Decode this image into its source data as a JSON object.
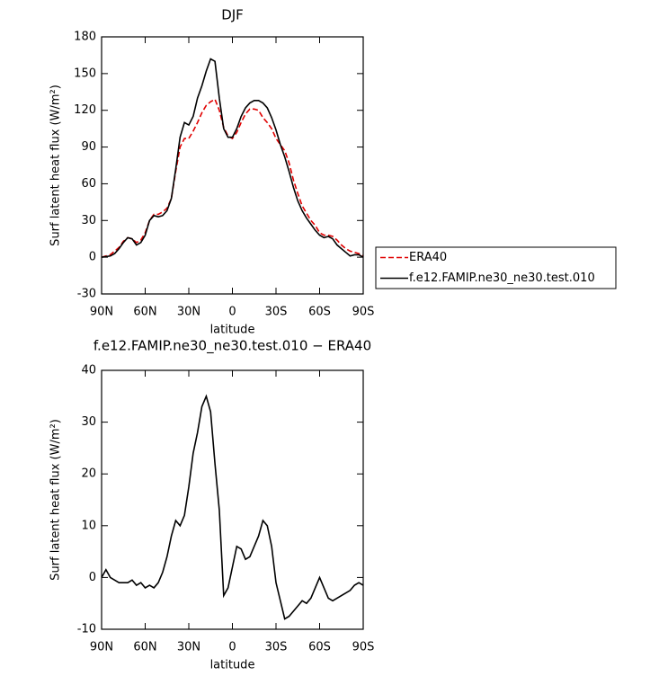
{
  "chart_data": [
    {
      "type": "line",
      "title": "DJF",
      "xlabel": "latitude",
      "ylabel": "Surf latent heat flux (W/m²)",
      "x": [
        90,
        87,
        84,
        81,
        78,
        75,
        72,
        69,
        66,
        63,
        60,
        57,
        54,
        51,
        48,
        45,
        42,
        39,
        36,
        33,
        30,
        27,
        24,
        21,
        18,
        15,
        12,
        9,
        6,
        3,
        0,
        -3,
        -6,
        -9,
        -12,
        -15,
        -18,
        -21,
        -24,
        -27,
        -30,
        -33,
        -36,
        -39,
        -42,
        -45,
        -48,
        -51,
        -54,
        -57,
        -60,
        -63,
        -66,
        -69,
        -72,
        -75,
        -78,
        -81,
        -84,
        -87,
        -90
      ],
      "series": [
        {
          "name": "ERA40",
          "color": "#e00000",
          "dashed": true,
          "values": [
            0,
            1,
            2,
            5,
            8,
            13,
            16,
            15,
            12,
            14,
            20,
            30,
            35,
            35,
            37,
            40,
            48,
            70,
            90,
            97,
            97,
            103,
            110,
            118,
            124,
            127,
            129,
            120,
            106,
            99,
            97,
            102,
            110,
            117,
            121,
            121,
            120,
            114,
            110,
            105,
            97,
            92,
            87,
            77,
            63,
            52,
            42,
            36,
            30,
            26,
            20,
            18,
            18,
            17,
            14,
            10,
            7,
            5,
            4,
            3,
            1
          ]
        },
        {
          "name": "f.e12.FAMIP.ne30_ne30.test.010",
          "color": "#000000",
          "dashed": false,
          "values": [
            0,
            0.5,
            1,
            3,
            7,
            12,
            16,
            15,
            10,
            12,
            18,
            30,
            34,
            33,
            34,
            38,
            48,
            72,
            98,
            110,
            108,
            115,
            130,
            140,
            152,
            162,
            160,
            130,
            105,
            98,
            98,
            105,
            115,
            122,
            126,
            128,
            128,
            126,
            122,
            114,
            104,
            92,
            82,
            70,
            57,
            46,
            38,
            32,
            27,
            22,
            18,
            16,
            17,
            15,
            10,
            7,
            4,
            1,
            2,
            2,
            0
          ]
        }
      ],
      "xlim": [
        90,
        -90
      ],
      "xticks": [
        {
          "value": 90,
          "label": "90N"
        },
        {
          "value": 60,
          "label": "60N"
        },
        {
          "value": 30,
          "label": "30N"
        },
        0,
        {
          "value": -30,
          "label": "30S"
        },
        {
          "value": -60,
          "label": "60S"
        },
        {
          "value": -90,
          "label": "90S"
        }
      ],
      "ylim": [
        -30,
        180
      ],
      "yticks": [
        -30,
        0,
        30,
        60,
        90,
        120,
        150,
        180
      ],
      "legend": "right"
    },
    {
      "type": "line",
      "title": "f.e12.FAMIP.ne30_ne30.test.010 − ERA40",
      "xlabel": "latitude",
      "ylabel": "Surf latent heat flux (W/m²)",
      "x": [
        90,
        87,
        84,
        81,
        78,
        75,
        72,
        69,
        66,
        63,
        60,
        57,
        54,
        51,
        48,
        45,
        42,
        39,
        36,
        33,
        30,
        27,
        24,
        21,
        18,
        15,
        12,
        9,
        6,
        3,
        0,
        -3,
        -6,
        -9,
        -12,
        -15,
        -18,
        -21,
        -24,
        -27,
        -30,
        -33,
        -36,
        -39,
        -42,
        -45,
        -48,
        -51,
        -54,
        -57,
        -60,
        -63,
        -66,
        -69,
        -72,
        -75,
        -78,
        -81,
        -84,
        -87,
        -90
      ],
      "values": [
        0,
        1.5,
        0,
        -0.5,
        -1,
        -1,
        -1,
        -0.5,
        -1.5,
        -1,
        -2,
        -1.5,
        -2,
        -1,
        1,
        4,
        8,
        11,
        10,
        12,
        17.5,
        24,
        28,
        33,
        35,
        32,
        22,
        13,
        -3.5,
        -2,
        2,
        6,
        5.5,
        3.5,
        4,
        6,
        8,
        11,
        10,
        6,
        -1,
        -4.5,
        -8,
        -7.5,
        -6.5,
        -5.5,
        -4.5,
        -5,
        -4,
        -2,
        0,
        -2,
        -4,
        -4.5,
        -4,
        -3.5,
        -3,
        -2.5,
        -1.5,
        -1,
        -1.5
      ],
      "color": "#000000",
      "xlim": [
        90,
        -90
      ],
      "xticks": [
        {
          "value": 90,
          "label": "90N"
        },
        {
          "value": 60,
          "label": "60N"
        },
        {
          "value": 30,
          "label": "30N"
        },
        0,
        {
          "value": -30,
          "label": "30S"
        },
        {
          "value": -60,
          "label": "60S"
        },
        {
          "value": -90,
          "label": "90S"
        }
      ],
      "ylim": [
        -10,
        40
      ],
      "yticks": [
        -10,
        0,
        10,
        20,
        30,
        40
      ]
    }
  ]
}
